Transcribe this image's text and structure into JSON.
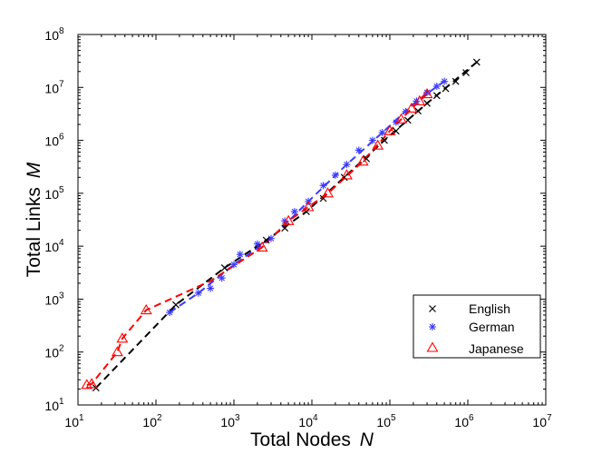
{
  "chart_data": {
    "type": "scatter",
    "xscale": "log",
    "yscale": "log",
    "xlim": [
      10,
      10000000
    ],
    "ylim": [
      10,
      100000000
    ],
    "xlabel": {
      "text": "Total Nodes",
      "var": "N"
    },
    "ylabel": {
      "text": "Total Links",
      "var": "M"
    },
    "xticks": [
      {
        "value": 10,
        "base": "10",
        "exp": "1"
      },
      {
        "value": 100,
        "base": "10",
        "exp": "2"
      },
      {
        "value": 1000,
        "base": "10",
        "exp": "3"
      },
      {
        "value": 10000,
        "base": "10",
        "exp": "4"
      },
      {
        "value": 100000,
        "base": "10",
        "exp": "5"
      },
      {
        "value": 1000000,
        "base": "10",
        "exp": "6"
      },
      {
        "value": 10000000,
        "base": "10",
        "exp": "7"
      }
    ],
    "yticks": [
      {
        "value": 10,
        "base": "10",
        "exp": "1"
      },
      {
        "value": 100,
        "base": "10",
        "exp": "2"
      },
      {
        "value": 1000,
        "base": "10",
        "exp": "3"
      },
      {
        "value": 10000,
        "base": "10",
        "exp": "4"
      },
      {
        "value": 100000,
        "base": "10",
        "exp": "5"
      },
      {
        "value": 1000000,
        "base": "10",
        "exp": "6"
      },
      {
        "value": 10000000,
        "base": "10",
        "exp": "7"
      },
      {
        "value": 100000000,
        "base": "10",
        "exp": "8"
      }
    ],
    "grid": false,
    "legend": {
      "position": "bottom-right"
    },
    "series": [
      {
        "name": "English",
        "marker": "x",
        "color": "#000000",
        "points": [
          [
            17,
            21
          ],
          [
            180,
            780
          ],
          [
            760,
            3900
          ],
          [
            2600,
            13000
          ],
          [
            4500,
            22000
          ],
          [
            8500,
            45000
          ],
          [
            14000,
            80000
          ],
          [
            26000,
            200000
          ],
          [
            50000,
            450000
          ],
          [
            85000,
            1000000
          ],
          [
            120000,
            1500000
          ],
          [
            170000,
            2400000
          ],
          [
            230000,
            3600000
          ],
          [
            300000,
            5000000
          ],
          [
            400000,
            7000000
          ],
          [
            520000,
            9500000
          ],
          [
            700000,
            13000000
          ],
          [
            950000,
            19000000
          ],
          [
            1300000,
            30000000
          ]
        ],
        "fit_line": [
          [
            17,
            21
          ],
          [
            180,
            780
          ],
          [
            760,
            3900
          ],
          [
            2600,
            13000
          ],
          [
            8500,
            45000
          ],
          [
            26000,
            200000
          ],
          [
            85000,
            1000000
          ],
          [
            300000,
            5000000
          ],
          [
            1300000,
            30000000
          ]
        ]
      },
      {
        "name": "German",
        "marker": "*",
        "color": "#3a3aff",
        "points": [
          [
            150,
            560
          ],
          [
            350,
            1300
          ],
          [
            500,
            1600
          ],
          [
            700,
            2500
          ],
          [
            1000,
            4500
          ],
          [
            1200,
            7000
          ],
          [
            2000,
            11000
          ],
          [
            3000,
            14000
          ],
          [
            4500,
            30000
          ],
          [
            6000,
            45000
          ],
          [
            9000,
            70000
          ],
          [
            14000,
            140000
          ],
          [
            20000,
            220000
          ],
          [
            28000,
            350000
          ],
          [
            40000,
            650000
          ],
          [
            60000,
            1000000
          ],
          [
            80000,
            1400000
          ],
          [
            120000,
            2200000
          ],
          [
            160000,
            3500000
          ],
          [
            220000,
            5500000
          ],
          [
            300000,
            8000000
          ],
          [
            400000,
            10500000
          ],
          [
            500000,
            13000000
          ]
        ],
        "fit_line": [
          [
            150,
            560
          ],
          [
            350,
            1300
          ],
          [
            1000,
            4500
          ],
          [
            3000,
            14000
          ],
          [
            9000,
            70000
          ],
          [
            28000,
            350000
          ],
          [
            80000,
            1400000
          ],
          [
            220000,
            5500000
          ],
          [
            500000,
            13000000
          ]
        ]
      },
      {
        "name": "Japanese",
        "marker": "triangle",
        "color": "#ff0000",
        "points": [
          [
            13,
            24
          ],
          [
            15,
            25
          ],
          [
            32,
            100
          ],
          [
            37,
            180
          ],
          [
            75,
            620
          ],
          [
            2300,
            9500
          ],
          [
            5000,
            30000
          ],
          [
            9000,
            55000
          ],
          [
            16000,
            100000
          ],
          [
            28000,
            220000
          ],
          [
            45000,
            400000
          ],
          [
            70000,
            800000
          ],
          [
            100000,
            1500000
          ],
          [
            140000,
            2500000
          ],
          [
            190000,
            4000000
          ],
          [
            240000,
            5500000
          ],
          [
            300000,
            7500000
          ]
        ],
        "fit_line": [
          [
            13,
            24
          ],
          [
            15,
            25
          ],
          [
            32,
            100
          ],
          [
            37,
            180
          ],
          [
            75,
            620
          ],
          [
            500,
            2200
          ],
          [
            2300,
            9500
          ],
          [
            5000,
            30000
          ],
          [
            16000,
            100000
          ],
          [
            45000,
            400000
          ],
          [
            100000,
            1500000
          ],
          [
            190000,
            4000000
          ],
          [
            300000,
            7500000
          ]
        ]
      }
    ]
  }
}
